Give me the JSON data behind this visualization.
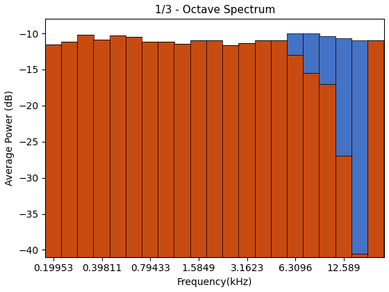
{
  "title": "1/3 - Octave Spectrum",
  "xlabel": "Frequency(kHz)",
  "ylabel": "Average Power (dB)",
  "ylim": [
    -41,
    -8
  ],
  "bar_color_orange": "#C84B11",
  "bar_color_blue": "#4472C4",
  "bar_edge_color": "#000000",
  "bar_edge_width": 0.5,
  "background_color": "#FFFFFF",
  "frequencies": [
    0.19953,
    0.25119,
    0.31623,
    0.39811,
    0.50119,
    0.63096,
    0.79433,
    1.0,
    1.2589,
    1.5849,
    1.9953,
    2.5119,
    3.1623,
    3.9811,
    5.0119,
    6.3096,
    7.9433,
    10.0,
    12.589,
    15.849,
    19.953
  ],
  "orange_tops": [
    -11.5,
    -11.2,
    -10.2,
    -10.9,
    -10.3,
    -10.5,
    -11.2,
    -11.2,
    -11.4,
    -11.0,
    -11.0,
    -11.6,
    -11.3,
    -11.0,
    -11.0,
    -13.0,
    -15.5,
    -17.0,
    -27.0,
    -40.5,
    -11.0
  ],
  "blue_tops": [
    -11.5,
    -11.2,
    -10.2,
    -10.9,
    -10.3,
    -10.5,
    -11.2,
    -11.2,
    -11.4,
    -11.0,
    -11.0,
    -11.6,
    -11.3,
    -11.0,
    -11.0,
    -10.0,
    -10.0,
    -10.4,
    -10.7,
    -11.0,
    -11.0
  ],
  "xtick_labels": [
    "0.19953",
    "0.39811",
    "0.79433",
    "1.5849",
    "3.1623",
    "6.3096",
    "12.589"
  ],
  "xtick_positions": [
    0.19953,
    0.39811,
    0.79433,
    1.5849,
    3.1623,
    6.3096,
    12.589
  ]
}
